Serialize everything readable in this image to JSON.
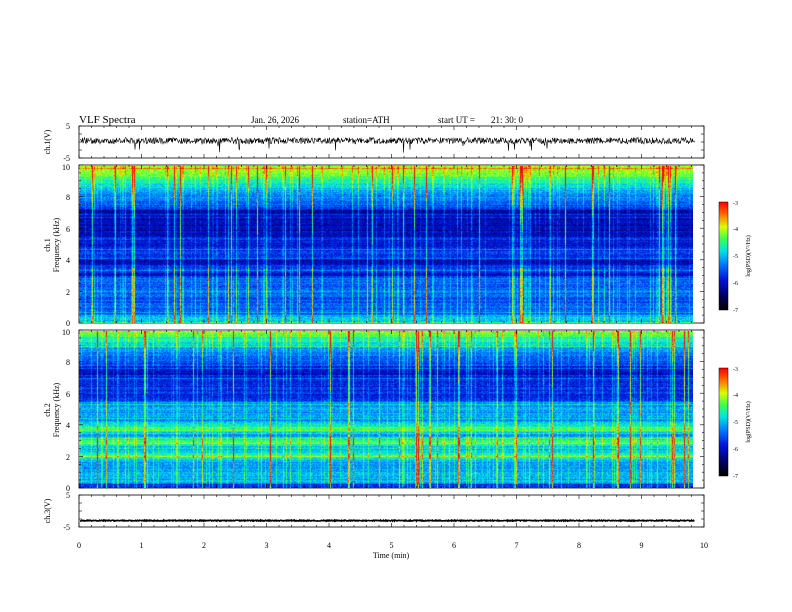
{
  "header": {
    "title": "VLF Spectra",
    "date": "Jan. 26, 2026",
    "station": "station=ATH",
    "start_label": "start UT =",
    "start_time": "21: 30: 0"
  },
  "chart_data": [
    {
      "type": "line",
      "name": "ch1-waveform",
      "ylabel": "ch.1(V)",
      "ylim": [
        -5,
        5
      ],
      "yticks": [
        "5",
        "-5"
      ],
      "x_range_min": [
        0,
        9.85
      ],
      "baseline_v": 0.4,
      "noise_amplitude_v": 1.0
    },
    {
      "type": "heatmap",
      "name": "ch1-spectrogram",
      "ylabel": "ch.1\nFrequency (kHz)",
      "ylim": [
        0,
        10
      ],
      "yticks": [
        "0",
        "2",
        "4",
        "6",
        "8",
        "10"
      ],
      "x_range_min": [
        0,
        9.85
      ],
      "colorbar": {
        "label": "log(PSD)(V²/Hz)",
        "range": [
          -7,
          -3
        ],
        "ticks": [
          "-3",
          "-4",
          "-5",
          "-6",
          "-7"
        ]
      }
    },
    {
      "type": "heatmap",
      "name": "ch2-spectrogram",
      "ylabel": "ch.2\nFrequency (kHz)",
      "ylim": [
        0,
        10
      ],
      "yticks": [
        "0",
        "2",
        "4",
        "6",
        "8",
        "10"
      ],
      "x_range_min": [
        0,
        9.85
      ],
      "colorbar": {
        "label": "log(PSD)(V²/Hz)",
        "range": [
          -7,
          -3
        ],
        "ticks": [
          "-3",
          "-4",
          "-5",
          "-6",
          "-7"
        ]
      }
    },
    {
      "type": "line",
      "name": "ch3-waveform",
      "ylabel": "ch.3(V)",
      "ylim": [
        -5,
        5
      ],
      "yticks": [
        "5",
        "-5"
      ],
      "x_range_min": [
        0,
        9.85
      ],
      "baseline_v": -3.0,
      "noise_amplitude_v": 0.15
    }
  ],
  "x_axis": {
    "label": "Time (min)",
    "range": [
      0,
      10
    ],
    "ticks": [
      "0",
      "1",
      "2",
      "3",
      "4",
      "5",
      "6",
      "7",
      "8",
      "9",
      "10"
    ]
  },
  "colors": {
    "background": "#ffffff",
    "axes": "#000000",
    "spectrogram_low": "#000000",
    "spectrogram_high": "#ff0000"
  }
}
